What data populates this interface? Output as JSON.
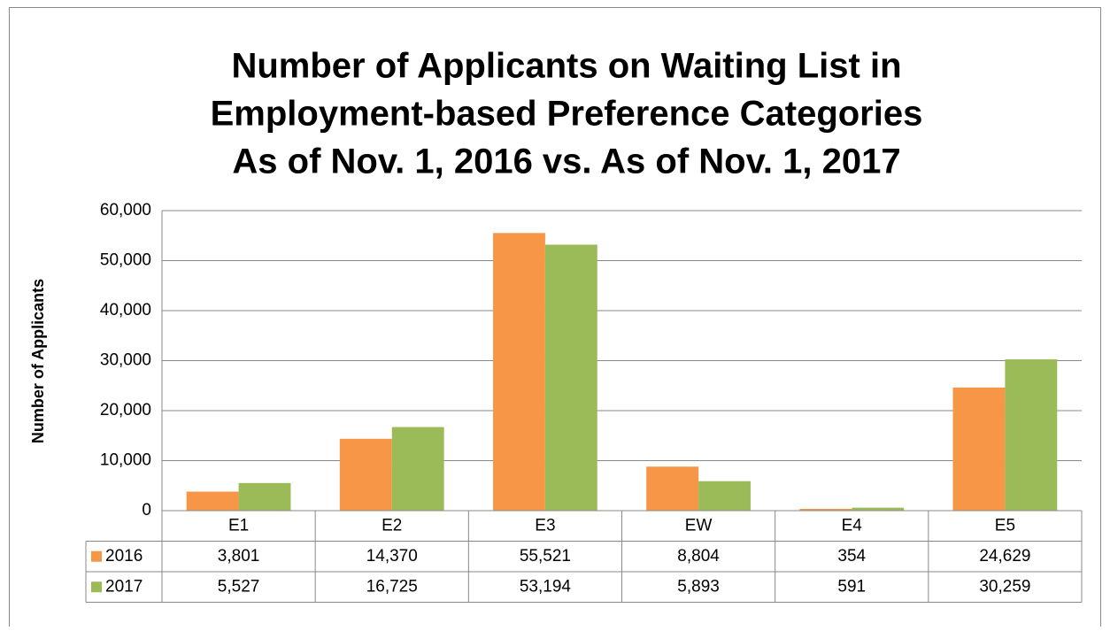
{
  "chart_data": {
    "type": "bar",
    "title": [
      "Number of Applicants on Waiting List in",
      "Employment-based Preference Categories",
      "As of Nov. 1, 2016 vs. As of Nov. 1, 2017"
    ],
    "y_label": "Number of Applicants",
    "categories": [
      "E1",
      "E2",
      "E3",
      "EW",
      "E4",
      "E5"
    ],
    "series": [
      {
        "name": "2016",
        "color": "#f79646",
        "values": [
          3801,
          14370,
          55521,
          8804,
          354,
          24629
        ],
        "value_labels": [
          "3,801",
          "14,370",
          "55,521",
          "8,804",
          "354",
          "24,629"
        ]
      },
      {
        "name": "2017",
        "color": "#9bbb59",
        "values": [
          5527,
          16725,
          53194,
          5893,
          591,
          30259
        ],
        "value_labels": [
          "5,527",
          "16,725",
          "53,194",
          "5,893",
          "591",
          "30,259"
        ]
      }
    ],
    "ylim": [
      0,
      60000
    ],
    "yticks": [
      0,
      {
        "value": 10000,
        "label": "10,000"
      },
      {
        "value": 20000,
        "label": "20,000"
      },
      {
        "value": 30000,
        "label": "30,000"
      },
      {
        "value": 40000,
        "label": "40,000"
      },
      {
        "value": 50000,
        "label": "50,000"
      },
      {
        "value": 60000,
        "label": "60,000"
      }
    ],
    "grid": true
  }
}
